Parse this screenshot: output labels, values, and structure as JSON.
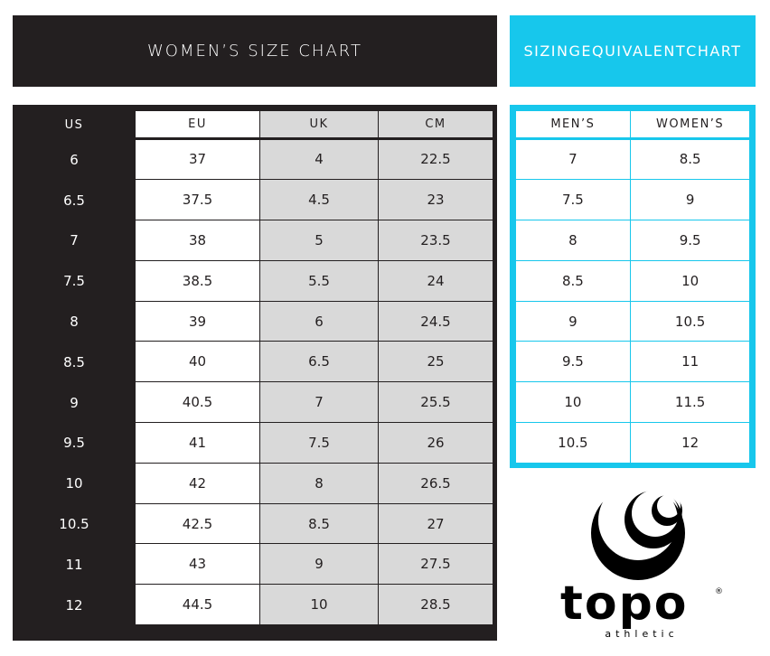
{
  "size_chart": {
    "title": "WOMEN’S SIZE CHART",
    "headers": [
      "US",
      "EU",
      "UK",
      "CM"
    ],
    "rows": [
      [
        "6",
        "37",
        "4",
        "22.5"
      ],
      [
        "6.5",
        "37.5",
        "4.5",
        "23"
      ],
      [
        "7",
        "38",
        "5",
        "23.5"
      ],
      [
        "7.5",
        "38.5",
        "5.5",
        "24"
      ],
      [
        "8",
        "39",
        "6",
        "24.5"
      ],
      [
        "8.5",
        "40",
        "6.5",
        "25"
      ],
      [
        "9",
        "40.5",
        "7",
        "25.5"
      ],
      [
        "9.5",
        "41",
        "7.5",
        "26"
      ],
      [
        "10",
        "42",
        "8",
        "26.5"
      ],
      [
        "10.5",
        "42.5",
        "8.5",
        "27"
      ],
      [
        "11",
        "43",
        "9",
        "27.5"
      ],
      [
        "12",
        "44.5",
        "10",
        "28.5"
      ]
    ]
  },
  "equivalent_chart": {
    "title_lines": [
      "SIZING",
      "EQUIVALENT",
      "CHART"
    ],
    "headers": [
      "MEN’S",
      "WOMEN’S"
    ],
    "rows": [
      [
        "7",
        "8.5"
      ],
      [
        "7.5",
        "9"
      ],
      [
        "8",
        "9.5"
      ],
      [
        "8.5",
        "10"
      ],
      [
        "9",
        "10.5"
      ],
      [
        "9.5",
        "11"
      ],
      [
        "10",
        "11.5"
      ],
      [
        "10.5",
        "12"
      ]
    ]
  },
  "logo": {
    "word": "topo",
    "tagline": "athletic",
    "registered": "®"
  },
  "colors": {
    "dark": "#231f20",
    "accent": "#17c7ec",
    "grey_cell": "#d9d9d9"
  }
}
